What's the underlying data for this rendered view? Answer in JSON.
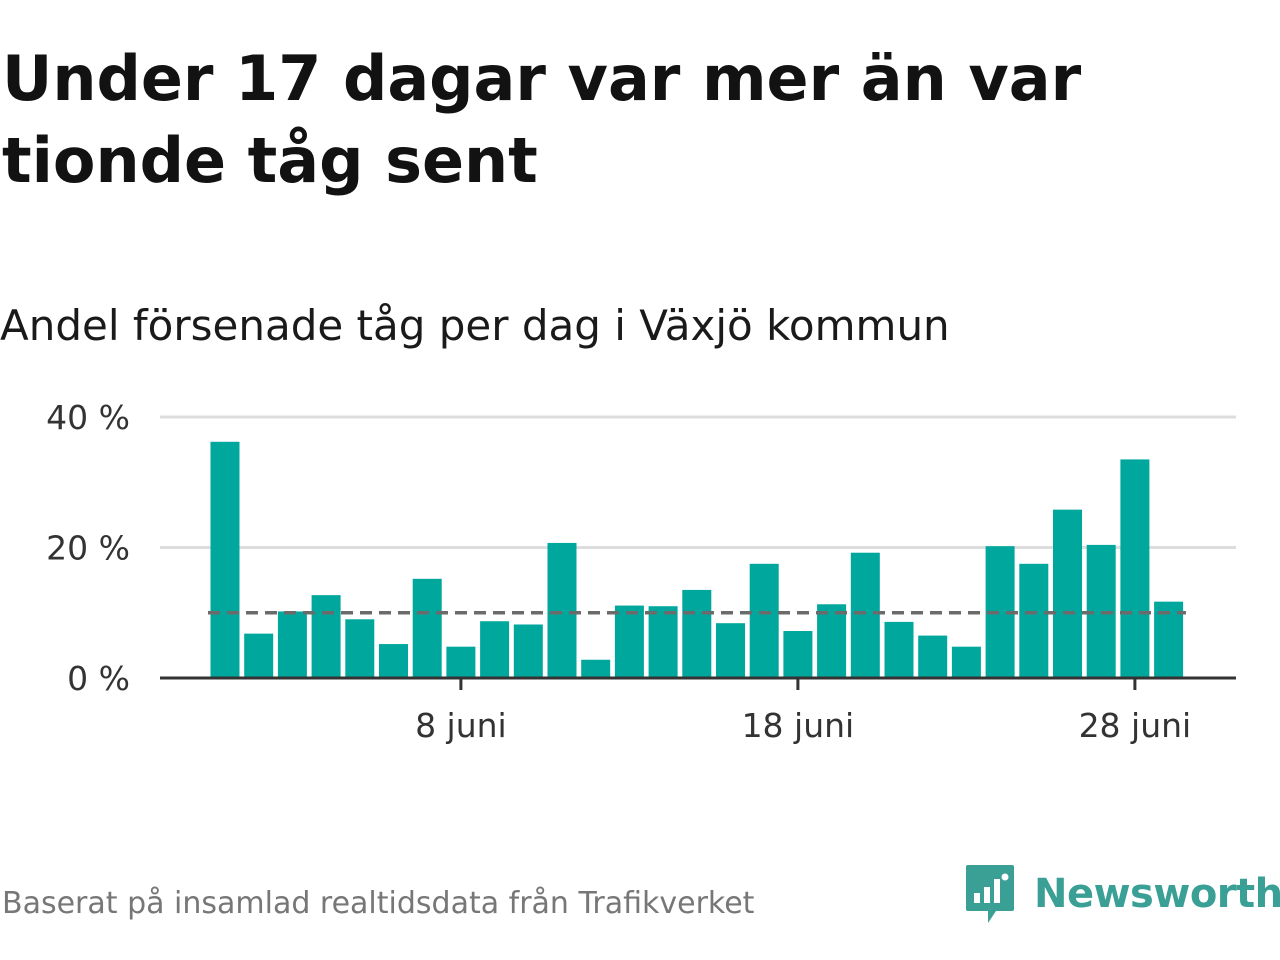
{
  "title": "Under 17 dagar var mer än var tionde tåg sent",
  "subtitle": "Andel försenade tåg per dag i Växjö kommun",
  "source": "Baserat på insamlad realtidsdata från Trafikverket",
  "brand": {
    "name": "Newsworthy",
    "color": "#3a9f95",
    "icon": "newsworthy-logo-icon"
  },
  "chart_data": {
    "type": "bar",
    "x_start_day": 1,
    "x_unit": "juni",
    "xticks": [
      {
        "day": 8,
        "label": "8 juni"
      },
      {
        "day": 18,
        "label": "18 juni"
      },
      {
        "day": 28,
        "label": "28 juni"
      }
    ],
    "yticks": [
      {
        "value": 0,
        "label": "0 %"
      },
      {
        "value": 20,
        "label": "20 %"
      },
      {
        "value": 40,
        "label": "40 %"
      }
    ],
    "ylim": [
      0,
      40
    ],
    "values": [
      36.2,
      6.8,
      10.2,
      12.7,
      9.0,
      5.2,
      15.2,
      4.8,
      8.7,
      8.2,
      20.7,
      2.8,
      11.1,
      11.0,
      13.5,
      8.4,
      17.5,
      7.2,
      11.3,
      19.2,
      8.6,
      6.5,
      4.8,
      20.2,
      17.5,
      25.8,
      20.4,
      33.5,
      11.7
    ],
    "reference_line": {
      "value": 10,
      "style": "dashed"
    },
    "bar_color": "#00a79d",
    "grid": true
  }
}
